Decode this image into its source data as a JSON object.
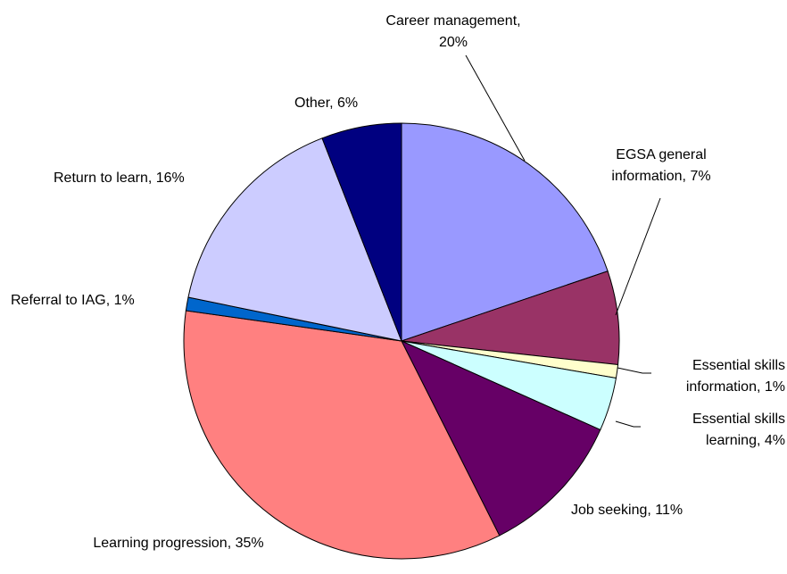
{
  "chart_data": {
    "type": "pie",
    "values": [
      20,
      7,
      1,
      4,
      11,
      35,
      1,
      16,
      6
    ],
    "value_labels": [
      "Career management, 20%",
      "EGSA general information, 7%",
      "Essential skills information, 1%",
      "Essential skills learning, 4%",
      "Job seeking, 11%",
      "Learning progression, 35%",
      "Referral to IAG, 1%",
      "Return to learn, 16%",
      "Other, 6%"
    ],
    "colors": [
      "#9999ff",
      "#993366",
      "#ffffcc",
      "#ccffff",
      "#660066",
      "#ff8080",
      "#0066cc",
      "#ccccff",
      "#000080"
    ]
  }
}
